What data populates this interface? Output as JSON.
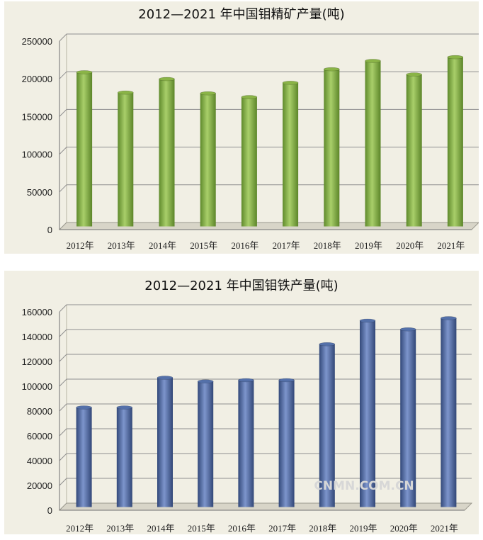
{
  "watermark": "CNMN.COM.CN",
  "chart_data": [
    {
      "type": "bar",
      "title": "2012—2021 年中国钼精矿产量(吨)",
      "categories": [
        "2012年",
        "2013年",
        "2014年",
        "2015年",
        "2016年",
        "2017年",
        "2018年",
        "2019年",
        "2020年",
        "2021年"
      ],
      "values": [
        204000,
        177000,
        195000,
        176000,
        171000,
        190000,
        208000,
        219000,
        201000,
        224000
      ],
      "ylim": [
        0,
        250000
      ],
      "yticks": [
        0,
        50000,
        100000,
        150000,
        200000,
        250000
      ],
      "ytick_labels": [
        "0",
        "50000",
        "100000",
        "150000",
        "200000",
        "250000"
      ],
      "grid": true,
      "bar_color": "#8ab447"
    },
    {
      "type": "bar",
      "title": "2012—2021 年中国钼铁产量(吨)",
      "categories": [
        "2012年",
        "2013年",
        "2014年",
        "2015年",
        "2016年",
        "2017年",
        "2018年",
        "2019年",
        "2020年",
        "2021年"
      ],
      "values": [
        80000,
        80000,
        104000,
        101000,
        102000,
        102000,
        131000,
        150000,
        143000,
        152000
      ],
      "ylim": [
        0,
        160000
      ],
      "yticks": [
        0,
        20000,
        40000,
        60000,
        80000,
        100000,
        120000,
        140000,
        160000
      ],
      "ytick_labels": [
        "0",
        "20000",
        "40000",
        "60000",
        "80000",
        "100000",
        "120000",
        "140000",
        "160000"
      ],
      "grid": true,
      "bar_color": "#5470a9"
    }
  ]
}
